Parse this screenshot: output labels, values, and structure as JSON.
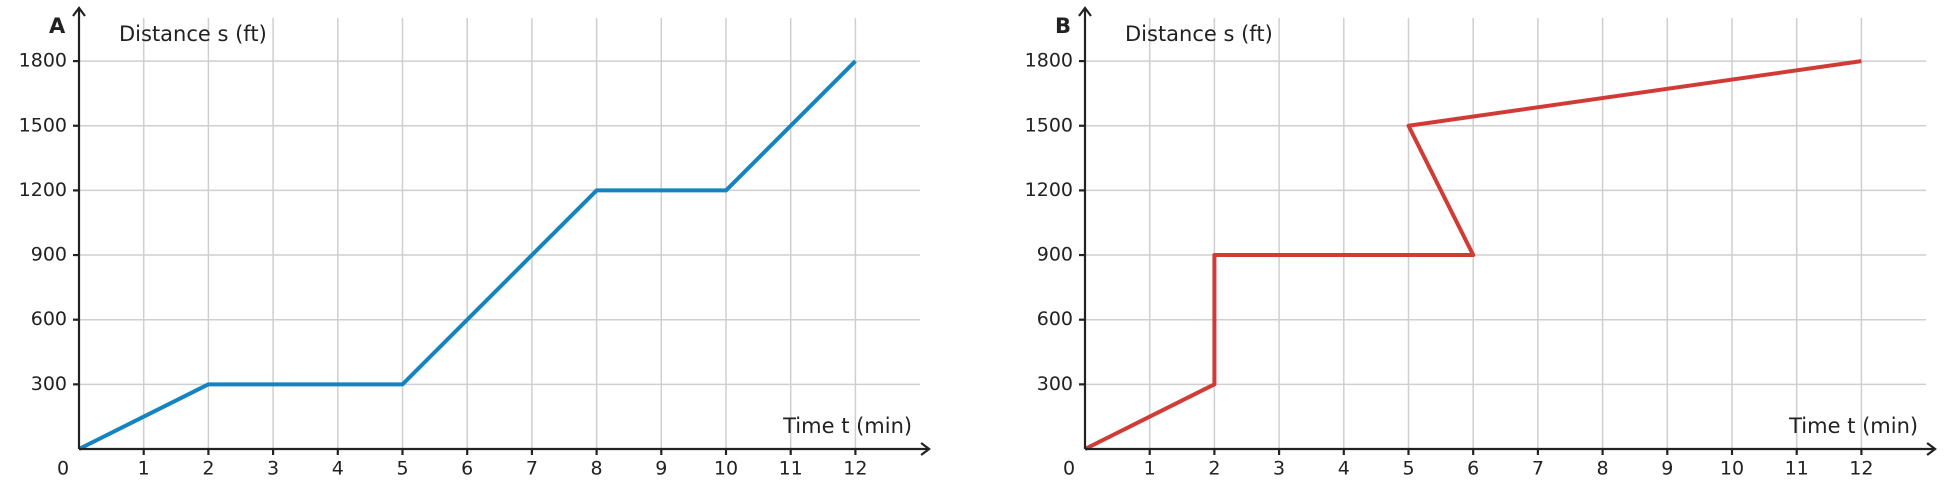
{
  "chart_data": [
    {
      "type": "line",
      "panel_label": "A",
      "y_label": "Distance s (ft)",
      "x_label": "Time t (min)",
      "x": [
        0,
        2,
        5,
        8,
        10,
        12
      ],
      "values": [
        0,
        300,
        300,
        1200,
        1200,
        1800
      ],
      "color": "#1384bf",
      "xlim": [
        0,
        13
      ],
      "ylim": [
        0,
        2000
      ],
      "xticks": [
        0,
        1,
        2,
        3,
        4,
        5,
        6,
        7,
        8,
        9,
        10,
        11,
        12
      ],
      "yticks": [
        300,
        600,
        900,
        1200,
        1500,
        1800
      ],
      "grid": true
    },
    {
      "type": "line",
      "panel_label": "B",
      "y_label": "Distance s (ft)",
      "x_label": "Time t (min)",
      "x": [
        0,
        2,
        2,
        6,
        5,
        12
      ],
      "values": [
        0,
        300,
        900,
        900,
        1500,
        1800
      ],
      "color": "#d13b36",
      "xlim": [
        0,
        13
      ],
      "ylim": [
        0,
        2000
      ],
      "xticks": [
        0,
        1,
        2,
        3,
        4,
        5,
        6,
        7,
        8,
        9,
        10,
        11,
        12
      ],
      "yticks": [
        300,
        600,
        900,
        1200,
        1500,
        1800
      ],
      "grid": true
    }
  ]
}
